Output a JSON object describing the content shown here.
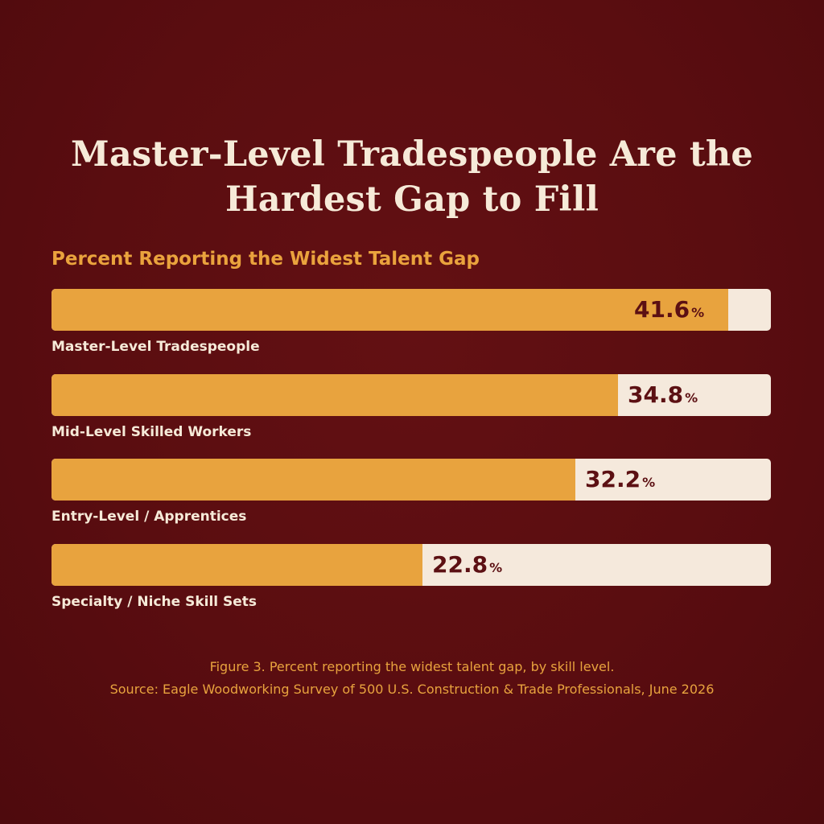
{
  "chart_data": {
    "type": "bar",
    "orientation": "horizontal",
    "title": "Master-Level Tradespeople Are the Hardest Gap to Fill",
    "subtitle": "Percent Reporting the Widest Talent Gap",
    "categories": [
      "Master-Level Tradespeople",
      "Mid-Level Skilled Workers",
      "Entry-Level / Apprentices",
      "Specialty / Niche Skill Sets"
    ],
    "values": [
      41.6,
      34.8,
      32.2,
      22.8
    ],
    "value_labels": [
      "41.6",
      "34.8",
      "32.2",
      "22.8"
    ],
    "unit": "%",
    "xlim": [
      0,
      44.2
    ],
    "grid": false,
    "legend": "none",
    "colors": {
      "background": "#5a0d10",
      "bar_fill": "#e8a33e",
      "bar_track": "#f5e9dc",
      "title_text": "#f6ead8",
      "subtitle_text": "#eaa33d",
      "value_text": "#5c1013",
      "caption_text": "#e8a33e"
    }
  },
  "caption": {
    "line1": "Figure 3. Percent reporting the widest talent gap, by skill level.",
    "line2": "Source: Eagle Woodworking Survey of 500 U.S. Construction & Trade Professionals, June 2026"
  }
}
